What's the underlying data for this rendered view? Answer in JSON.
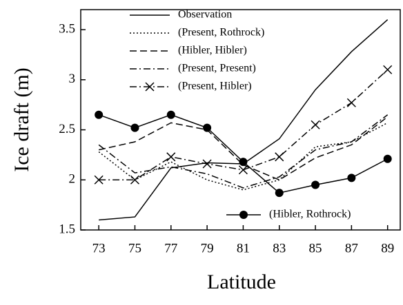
{
  "chart_data": {
    "type": "line",
    "x_label": "Latitude",
    "y_label": "Ice draft (m)",
    "x": [
      73,
      75,
      77,
      79,
      81,
      83,
      85,
      87,
      89
    ],
    "xlim": [
      72,
      89.7
    ],
    "xticks": [
      73,
      75,
      77,
      79,
      81,
      83,
      85,
      87,
      89
    ],
    "ylim": [
      1.5,
      3.7
    ],
    "yticks": [
      1.5,
      2,
      2.5,
      3,
      3.5
    ],
    "series": [
      {
        "name": "Observation",
        "color": "#000000",
        "linestyle": "solid",
        "marker": "none",
        "values": [
          1.6,
          1.63,
          2.12,
          2.17,
          2.16,
          2.41,
          2.9,
          3.28,
          3.6
        ]
      },
      {
        "name": "(Present, Rothrock)",
        "color": "#000000",
        "linestyle": "dotted",
        "marker": "none",
        "values": [
          2.28,
          2.0,
          2.18,
          2.0,
          1.9,
          2.0,
          2.33,
          2.38,
          2.57
        ]
      },
      {
        "name": "(Hibler, Hibler)",
        "color": "#000000",
        "linestyle": "dashed",
        "marker": "none",
        "values": [
          2.3,
          2.38,
          2.57,
          2.5,
          2.15,
          2.0,
          2.22,
          2.35,
          2.63
        ]
      },
      {
        "name": "(Present, Present)",
        "color": "#000000",
        "linestyle": "dashdot",
        "marker": "none",
        "values": [
          2.35,
          2.07,
          2.13,
          2.06,
          1.92,
          2.03,
          2.3,
          2.38,
          2.65
        ]
      },
      {
        "name": "(Present, Hibler)",
        "color": "#000000",
        "linestyle": "dashdot",
        "marker": "x",
        "values": [
          2.0,
          2.0,
          2.23,
          2.16,
          2.1,
          2.23,
          2.55,
          2.77,
          3.1
        ]
      },
      {
        "name": "(Hibler, Rothrock)",
        "color": "#000000",
        "linestyle": "solid",
        "marker": "circle",
        "values": [
          2.65,
          2.52,
          2.65,
          2.52,
          2.18,
          1.87,
          1.95,
          2.02,
          2.21
        ]
      }
    ]
  }
}
